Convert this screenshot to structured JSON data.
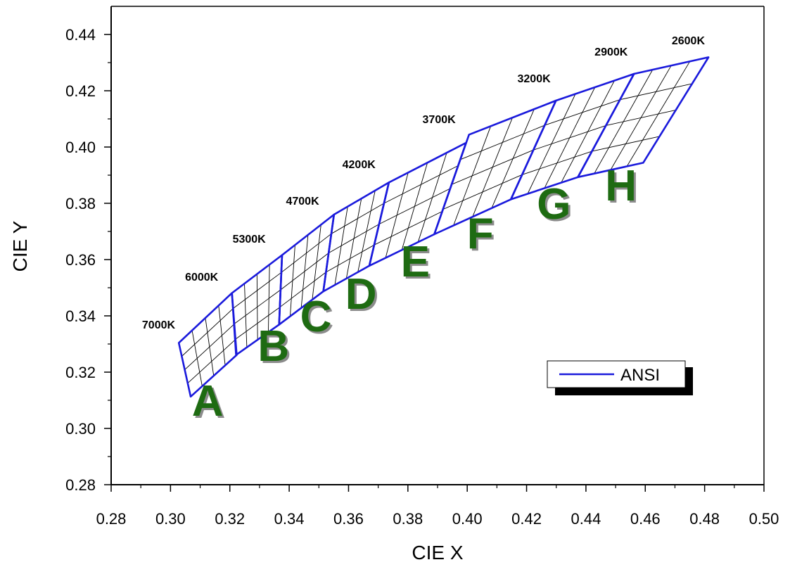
{
  "chart_data": {
    "type": "line",
    "xlabel": "CIE X",
    "ylabel": "CIE Y",
    "xlim": [
      0.28,
      0.5
    ],
    "ylim": [
      0.28,
      0.45
    ],
    "x_ticks": [
      "0.28",
      "0.30",
      "0.32",
      "0.34",
      "0.36",
      "0.38",
      "0.40",
      "0.42",
      "0.44",
      "0.46",
      "0.48",
      "0.50"
    ],
    "y_ticks": [
      "0.28",
      "0.30",
      "0.32",
      "0.34",
      "0.36",
      "0.38",
      "0.40",
      "0.42",
      "0.44"
    ],
    "grid": false,
    "legend": {
      "label": "ANSI",
      "placement": "right",
      "color": "#1a1adc"
    },
    "colors": {
      "ansi": "#1a1adc",
      "subgrid": "#000000",
      "bin_label": "#1e6b12",
      "axis": "#000000"
    },
    "series": [
      {
        "name": "ANSI",
        "quads": [
          {
            "bin": "A",
            "corners": [
              [
                0.3028,
                0.3304
              ],
              [
                0.3207,
                0.3481
              ],
              [
                0.3223,
                0.3261
              ],
              [
                0.3068,
                0.3113
              ]
            ]
          },
          {
            "bin": "B",
            "corners": [
              [
                0.3207,
                0.3481
              ],
              [
                0.3376,
                0.3616
              ],
              [
                0.3366,
                0.3369
              ],
              [
                0.3221,
                0.3261
              ]
            ]
          },
          {
            "bin": "C",
            "corners": [
              [
                0.3376,
                0.3616
              ],
              [
                0.3551,
                0.376
              ],
              [
                0.3515,
                0.3487
              ],
              [
                0.3366,
                0.3369
              ]
            ]
          },
          {
            "bin": "D",
            "corners": [
              [
                0.3551,
                0.376
              ],
              [
                0.3736,
                0.3874
              ],
              [
                0.367,
                0.3578
              ],
              [
                0.3515,
                0.3487
              ]
            ]
          },
          {
            "bin": "E",
            "corners": [
              [
                0.3736,
                0.3874
              ],
              [
                0.3996,
                0.4015
              ],
              [
                0.3889,
                0.369
              ],
              [
                0.367,
                0.3578
              ]
            ]
          },
          {
            "bin": "F",
            "corners": [
              [
                0.4006,
                0.4044
              ],
              [
                0.4299,
                0.4165
              ],
              [
                0.4147,
                0.3814
              ],
              [
                0.3889,
                0.369
              ]
            ]
          },
          {
            "bin": "G",
            "corners": [
              [
                0.4299,
                0.4165
              ],
              [
                0.4562,
                0.426
              ],
              [
                0.4373,
                0.3893
              ],
              [
                0.4147,
                0.3814
              ]
            ]
          },
          {
            "bin": "H",
            "corners": [
              [
                0.4562,
                0.426
              ],
              [
                0.4813,
                0.4319
              ],
              [
                0.4593,
                0.3944
              ],
              [
                0.4373,
                0.3893
              ]
            ]
          }
        ]
      }
    ],
    "cct_labels": [
      {
        "text": "7000K",
        "x": 0.296,
        "y": 0.3355
      },
      {
        "text": "6000K",
        "x": 0.3105,
        "y": 0.3525
      },
      {
        "text": "5300K",
        "x": 0.3265,
        "y": 0.366
      },
      {
        "text": "4700K",
        "x": 0.3445,
        "y": 0.3795
      },
      {
        "text": "4200K",
        "x": 0.3635,
        "y": 0.3925
      },
      {
        "text": "3700K",
        "x": 0.3905,
        "y": 0.4085
      },
      {
        "text": "3200K",
        "x": 0.4225,
        "y": 0.423
      },
      {
        "text": "2900K",
        "x": 0.4485,
        "y": 0.4325
      },
      {
        "text": "2600K",
        "x": 0.4745,
        "y": 0.4365
      }
    ],
    "bin_labels": [
      {
        "text": "A",
        "x": 0.3125,
        "y": 0.3045
      },
      {
        "text": "B",
        "x": 0.3347,
        "y": 0.324
      },
      {
        "text": "C",
        "x": 0.349,
        "y": 0.3345
      },
      {
        "text": "D",
        "x": 0.3642,
        "y": 0.3425
      },
      {
        "text": "E",
        "x": 0.3825,
        "y": 0.354
      },
      {
        "text": "F",
        "x": 0.4044,
        "y": 0.364
      },
      {
        "text": "G",
        "x": 0.4292,
        "y": 0.3745
      },
      {
        "text": "H",
        "x": 0.4518,
        "y": 0.381
      }
    ]
  }
}
